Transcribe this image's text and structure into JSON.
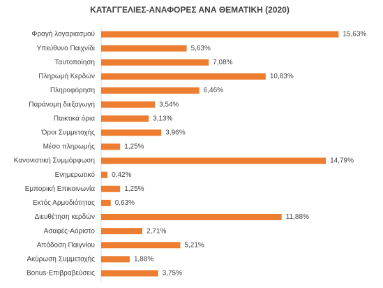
{
  "chart_data": {
    "type": "hbar",
    "title": "ΚΑΤΑΓΓΕΛΙΕΣ-ΑΝΑΦΟΡΕΣ ΑΝΑ ΘΕΜΑΤΙΚΗ (2020)",
    "categories": [
      "Φραγή λογαριασμού",
      "Υπεύθυνο Παιχνίδι",
      "Ταυτοποίηση",
      "Πληρωμή Κερδών",
      "Πληροφόρηση",
      "Παράνομη διεξαγωγή",
      "Παικτικά όρια",
      "Όροι Συμμετοχής",
      "Μέσο πληρωμής",
      "Κανονιστική Συμμόρφωση",
      "Ενημερωτικό",
      "Εμπορική Επικοινωνία",
      "Εκτός Αρμοδιότητας",
      "Διευθέτηση κερδών",
      "Ασαφές-Αόριστο",
      "Απόδοση Παιγνίου",
      "Ακύρωση Συμμετοχής",
      "Bonus-Επιβραβεύσεις"
    ],
    "values": [
      15.63,
      5.63,
      7.08,
      10.83,
      6.46,
      3.54,
      3.13,
      3.96,
      1.25,
      14.79,
      0.42,
      1.25,
      0.63,
      11.88,
      2.71,
      5.21,
      1.88,
      3.75
    ],
    "value_labels": [
      "15,63%",
      "5,63%",
      "7,08%",
      "10,83%",
      "6,46%",
      "3,54%",
      "3,13%",
      "3,96%",
      "1,25%",
      "14,79%",
      "0,42%",
      "1,25%",
      "0,63%",
      "11,88%",
      "2,71%",
      "5,21%",
      "1,88%",
      "3,75%"
    ],
    "color": "#ed7d31",
    "xlim": [
      0,
      18
    ]
  }
}
